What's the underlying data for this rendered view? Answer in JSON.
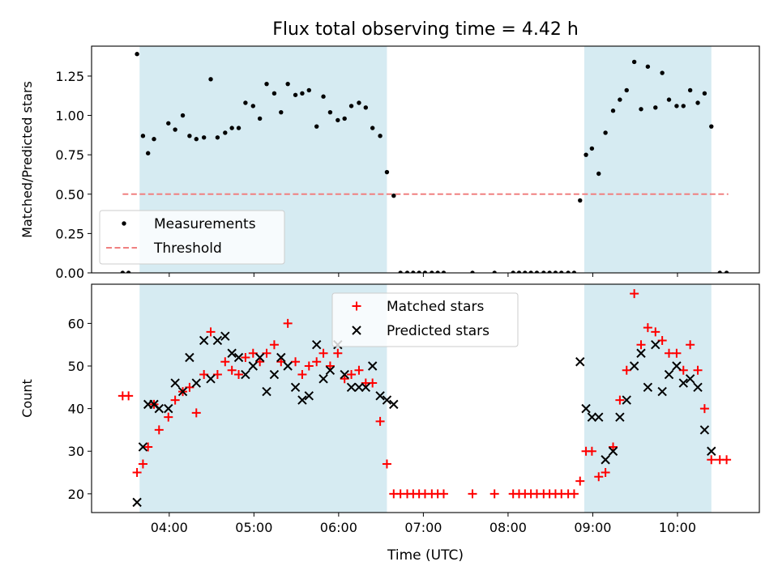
{
  "chart_data": {
    "title": "Flux total observing time = 4.42 h",
    "xlabel": "Time (UTC)",
    "x_unit": "hours UTC",
    "x_range": [
      3.0833,
      10.9667
    ],
    "x_ticks": [
      {
        "value": 4.0,
        "label": "04:00"
      },
      {
        "value": 5.0,
        "label": "05:00"
      },
      {
        "value": 6.0,
        "label": "06:00"
      },
      {
        "value": 7.0,
        "label": "07:00"
      },
      {
        "value": 8.0,
        "label": "08:00"
      },
      {
        "value": 9.0,
        "label": "09:00"
      },
      {
        "value": 10.0,
        "label": "10:00"
      }
    ],
    "shaded_intervals": [
      {
        "from": 3.65,
        "to": 6.57
      },
      {
        "from": 8.9,
        "to": 10.4
      }
    ],
    "shade_color": "#add8e6",
    "panels": [
      {
        "type": "scatter",
        "ylabel": "Matched/Predicted stars",
        "ylim": [
          0.0,
          1.44
        ],
        "y_ticks": [
          0.0,
          0.25,
          0.5,
          0.75,
          1.0,
          1.25
        ],
        "y_tick_labels": [
          "0.00",
          "0.25",
          "0.50",
          "0.75",
          "1.00",
          "1.25"
        ],
        "legend_position": "lower-left",
        "series": [
          {
            "name": "Measurements",
            "marker": "dot",
            "color": "#000000",
            "points": [
              [
                3.45,
                0.0
              ],
              [
                3.52,
                0.0
              ],
              [
                3.62,
                1.39
              ],
              [
                3.69,
                0.87
              ],
              [
                3.75,
                0.76
              ],
              [
                3.82,
                0.85
              ],
              [
                3.99,
                0.95
              ],
              [
                4.07,
                0.91
              ],
              [
                4.16,
                1.0
              ],
              [
                4.24,
                0.87
              ],
              [
                4.32,
                0.85
              ],
              [
                4.41,
                0.86
              ],
              [
                4.49,
                1.23
              ],
              [
                4.57,
                0.86
              ],
              [
                4.66,
                0.89
              ],
              [
                4.74,
                0.92
              ],
              [
                4.82,
                0.92
              ],
              [
                4.9,
                1.08
              ],
              [
                4.99,
                1.06
              ],
              [
                5.07,
                0.98
              ],
              [
                5.15,
                1.2
              ],
              [
                5.24,
                1.14
              ],
              [
                5.32,
                1.02
              ],
              [
                5.4,
                1.2
              ],
              [
                5.49,
                1.13
              ],
              [
                5.57,
                1.14
              ],
              [
                5.65,
                1.16
              ],
              [
                5.74,
                0.93
              ],
              [
                5.82,
                1.12
              ],
              [
                5.9,
                1.02
              ],
              [
                5.99,
                0.97
              ],
              [
                6.07,
                0.98
              ],
              [
                6.15,
                1.06
              ],
              [
                6.24,
                1.08
              ],
              [
                6.32,
                1.05
              ],
              [
                6.4,
                0.92
              ],
              [
                6.49,
                0.87
              ],
              [
                6.57,
                0.64
              ],
              [
                6.65,
                0.49
              ],
              [
                6.73,
                0.0
              ],
              [
                6.81,
                0.0
              ],
              [
                6.88,
                0.0
              ],
              [
                6.95,
                0.0
              ],
              [
                7.02,
                0.0
              ],
              [
                7.1,
                0.0
              ],
              [
                7.17,
                0.0
              ],
              [
                7.24,
                0.0
              ],
              [
                7.58,
                0.0
              ],
              [
                7.84,
                0.0
              ],
              [
                8.06,
                0.0
              ],
              [
                8.13,
                0.0
              ],
              [
                8.2,
                0.0
              ],
              [
                8.27,
                0.0
              ],
              [
                8.34,
                0.0
              ],
              [
                8.42,
                0.0
              ],
              [
                8.49,
                0.0
              ],
              [
                8.56,
                0.0
              ],
              [
                8.63,
                0.0
              ],
              [
                8.71,
                0.0
              ],
              [
                8.78,
                0.0
              ],
              [
                8.85,
                0.46
              ],
              [
                8.92,
                0.75
              ],
              [
                8.99,
                0.79
              ],
              [
                9.07,
                0.63
              ],
              [
                9.15,
                0.89
              ],
              [
                9.24,
                1.03
              ],
              [
                9.32,
                1.1
              ],
              [
                9.4,
                1.16
              ],
              [
                9.49,
                1.34
              ],
              [
                9.57,
                1.04
              ],
              [
                9.65,
                1.31
              ],
              [
                9.74,
                1.05
              ],
              [
                9.82,
                1.27
              ],
              [
                9.9,
                1.1
              ],
              [
                9.99,
                1.06
              ],
              [
                10.07,
                1.06
              ],
              [
                10.15,
                1.16
              ],
              [
                10.24,
                1.08
              ],
              [
                10.32,
                1.14
              ],
              [
                10.4,
                0.93
              ],
              [
                10.5,
                0.0
              ],
              [
                10.58,
                0.0
              ]
            ]
          }
        ],
        "threshold": {
          "name": "Threshold",
          "y": 0.5,
          "x_from": 3.45,
          "x_to": 10.6,
          "color": "#f08080",
          "style": "dashed"
        }
      },
      {
        "type": "scatter",
        "ylabel": "Count",
        "ylim": [
          15.6,
          69.2
        ],
        "y_ticks": [
          20,
          30,
          40,
          50,
          60
        ],
        "y_tick_labels": [
          "20",
          "30",
          "40",
          "50",
          "60"
        ],
        "legend_position": "top-center",
        "series": [
          {
            "name": "Matched stars",
            "marker": "plus",
            "color": "#ff0000",
            "points": [
              [
                3.45,
                43
              ],
              [
                3.52,
                43
              ],
              [
                3.62,
                25
              ],
              [
                3.69,
                27
              ],
              [
                3.75,
                31
              ],
              [
                3.82,
                41
              ],
              [
                3.88,
                35
              ],
              [
                3.99,
                38
              ],
              [
                4.07,
                42
              ],
              [
                4.16,
                44
              ],
              [
                4.24,
                45
              ],
              [
                4.32,
                39
              ],
              [
                4.41,
                48
              ],
              [
                4.49,
                58
              ],
              [
                4.57,
                48
              ],
              [
                4.66,
                51
              ],
              [
                4.74,
                49
              ],
              [
                4.82,
                48
              ],
              [
                4.9,
                52
              ],
              [
                4.99,
                53
              ],
              [
                5.07,
                51
              ],
              [
                5.15,
                53
              ],
              [
                5.24,
                55
              ],
              [
                5.32,
                51
              ],
              [
                5.4,
                60
              ],
              [
                5.49,
                51
              ],
              [
                5.57,
                48
              ],
              [
                5.65,
                50
              ],
              [
                5.74,
                51
              ],
              [
                5.82,
                53
              ],
              [
                5.9,
                50
              ],
              [
                5.99,
                53
              ],
              [
                6.07,
                47
              ],
              [
                6.15,
                48
              ],
              [
                6.24,
                49
              ],
              [
                6.32,
                46
              ],
              [
                6.4,
                46
              ],
              [
                6.49,
                37
              ],
              [
                6.57,
                27
              ],
              [
                6.65,
                20
              ],
              [
                6.73,
                20
              ],
              [
                6.81,
                20
              ],
              [
                6.88,
                20
              ],
              [
                6.95,
                20
              ],
              [
                7.02,
                20
              ],
              [
                7.1,
                20
              ],
              [
                7.17,
                20
              ],
              [
                7.24,
                20
              ],
              [
                7.58,
                20
              ],
              [
                7.84,
                20
              ],
              [
                8.06,
                20
              ],
              [
                8.13,
                20
              ],
              [
                8.2,
                20
              ],
              [
                8.27,
                20
              ],
              [
                8.34,
                20
              ],
              [
                8.42,
                20
              ],
              [
                8.49,
                20
              ],
              [
                8.56,
                20
              ],
              [
                8.63,
                20
              ],
              [
                8.71,
                20
              ],
              [
                8.78,
                20
              ],
              [
                8.85,
                23
              ],
              [
                8.92,
                30
              ],
              [
                8.99,
                30
              ],
              [
                9.07,
                24
              ],
              [
                9.15,
                25
              ],
              [
                9.24,
                31
              ],
              [
                9.32,
                42
              ],
              [
                9.4,
                49
              ],
              [
                9.49,
                67
              ],
              [
                9.57,
                55
              ],
              [
                9.65,
                59
              ],
              [
                9.74,
                58
              ],
              [
                9.82,
                56
              ],
              [
                9.9,
                53
              ],
              [
                9.99,
                53
              ],
              [
                10.07,
                49
              ],
              [
                10.15,
                55
              ],
              [
                10.24,
                49
              ],
              [
                10.32,
                40
              ],
              [
                10.4,
                28
              ],
              [
                10.5,
                28
              ],
              [
                10.58,
                28
              ]
            ]
          },
          {
            "name": "Predicted stars",
            "marker": "x",
            "color": "#000000",
            "points": [
              [
                3.62,
                18
              ],
              [
                3.69,
                31
              ],
              [
                3.75,
                41
              ],
              [
                3.82,
                41
              ],
              [
                3.88,
                40
              ],
              [
                3.99,
                40
              ],
              [
                4.07,
                46
              ],
              [
                4.16,
                44
              ],
              [
                4.24,
                52
              ],
              [
                4.32,
                46
              ],
              [
                4.41,
                56
              ],
              [
                4.49,
                47
              ],
              [
                4.57,
                56
              ],
              [
                4.66,
                57
              ],
              [
                4.74,
                53
              ],
              [
                4.82,
                52
              ],
              [
                4.9,
                48
              ],
              [
                4.99,
                50
              ],
              [
                5.07,
                52
              ],
              [
                5.15,
                44
              ],
              [
                5.24,
                48
              ],
              [
                5.32,
                52
              ],
              [
                5.4,
                50
              ],
              [
                5.49,
                45
              ],
              [
                5.57,
                42
              ],
              [
                5.65,
                43
              ],
              [
                5.74,
                55
              ],
              [
                5.82,
                47
              ],
              [
                5.9,
                49
              ],
              [
                5.99,
                55
              ],
              [
                6.07,
                48
              ],
              [
                6.15,
                45
              ],
              [
                6.24,
                45
              ],
              [
                6.32,
                45
              ],
              [
                6.4,
                50
              ],
              [
                6.49,
                43
              ],
              [
                6.57,
                42
              ],
              [
                6.65,
                41
              ],
              [
                8.85,
                51
              ],
              [
                8.92,
                40
              ],
              [
                8.99,
                38
              ],
              [
                9.07,
                38
              ],
              [
                9.15,
                28
              ],
              [
                9.24,
                30
              ],
              [
                9.32,
                38
              ],
              [
                9.4,
                42
              ],
              [
                9.49,
                50
              ],
              [
                9.57,
                53
              ],
              [
                9.65,
                45
              ],
              [
                9.74,
                55
              ],
              [
                9.82,
                44
              ],
              [
                9.9,
                48
              ],
              [
                9.99,
                50
              ],
              [
                10.07,
                46
              ],
              [
                10.15,
                47
              ],
              [
                10.24,
                45
              ],
              [
                10.32,
                35
              ],
              [
                10.4,
                30
              ]
            ]
          }
        ]
      }
    ]
  }
}
